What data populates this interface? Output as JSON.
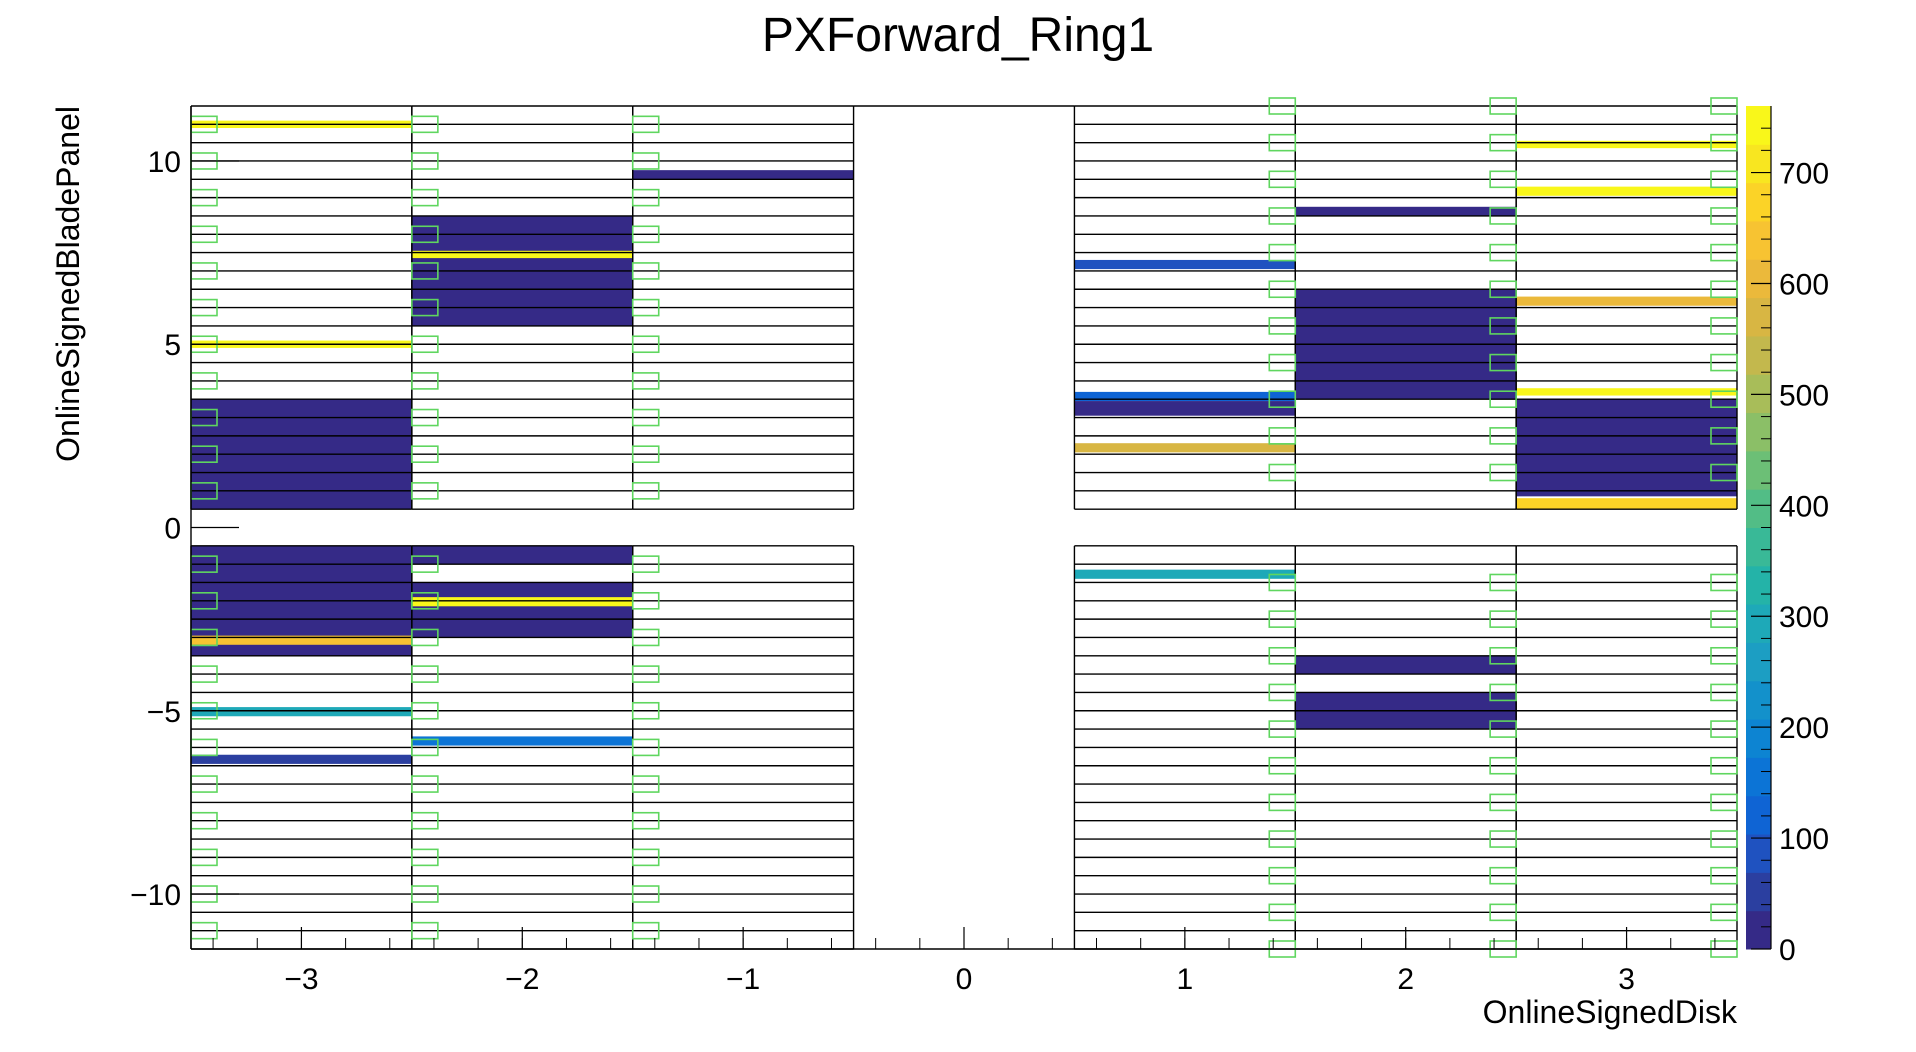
{
  "chart_data": {
    "type": "heatmap",
    "title": "PXForward_Ring1",
    "xlabel": "OnlineSignedDisk",
    "ylabel": "OnlineSignedBladePanel",
    "xlim": [
      -3.5,
      3.5
    ],
    "ylim": [
      -11.5,
      11.5
    ],
    "x_ticks": [
      -3,
      -2,
      -1,
      0,
      1,
      2,
      3
    ],
    "x_tick_labels": [
      "−3",
      "−2",
      "−1",
      "0",
      "1",
      "2",
      "3"
    ],
    "y_ticks": [
      -10,
      -5,
      0,
      5,
      10
    ],
    "y_tick_labels": [
      "−10",
      "−5",
      "0",
      "5",
      "10"
    ],
    "colorbar": {
      "min": 0,
      "max": 760,
      "ticks": [
        0,
        100,
        200,
        300,
        400,
        500,
        600,
        700
      ],
      "tick_labels": [
        "0",
        "100",
        "200",
        "300",
        "400",
        "500",
        "600",
        "700"
      ],
      "palette": [
        "#352a87",
        "#2b3fa0",
        "#1f52c0",
        "#0f64d4",
        "#0c74d6",
        "#0d84d2",
        "#1391cb",
        "#1c9ec3",
        "#1ea9b8",
        "#24b3a8",
        "#39b997",
        "#52bd86",
        "#6cbf76",
        "#8bbf67",
        "#a8bd59",
        "#c3b84d",
        "#d8b643",
        "#ebb93b",
        "#f7c332",
        "#fbd327",
        "#f8e620",
        "#f9f71a"
      ]
    },
    "panel_rows_top": [
      11,
      10.5,
      10,
      9.5,
      9,
      8.5,
      8,
      7.5,
      7,
      6.5,
      6,
      5.5,
      5,
      4.5,
      4,
      3.5,
      3,
      2.5,
      2,
      1.5,
      1,
      0.5
    ],
    "panel_rows_bottom": [
      -0.5,
      -1,
      -1.5,
      -2,
      -2.5,
      -3,
      -3.5,
      -4,
      -4.5,
      -5,
      -5.5,
      -6,
      -6.5,
      -7,
      -7.5,
      -8,
      -8.5,
      -9,
      -9.5,
      -10,
      -10.5,
      -11
    ],
    "disks": [
      -3,
      -2,
      -1,
      1,
      2,
      3
    ],
    "cells": [
      {
        "x": -3,
        "y0": 10.9,
        "y1": 11.1,
        "value": 740
      },
      {
        "x": -3,
        "y0": 4.9,
        "y1": 5.1,
        "value": 740
      },
      {
        "x": -3,
        "y0": 0.5,
        "y1": 3.5,
        "value": 5
      },
      {
        "x": -3,
        "y0": -3.5,
        "y1": -0.5,
        "value": 5
      },
      {
        "x": -3,
        "y0": -3.2,
        "y1": -2.95,
        "value": 650
      },
      {
        "x": -3,
        "y0": -5.15,
        "y1": -4.9,
        "value": 290
      },
      {
        "x": -3,
        "y0": -6.45,
        "y1": -6.2,
        "value": 50
      },
      {
        "x": -2,
        "y0": 5.5,
        "y1": 8.5,
        "value": 5
      },
      {
        "x": -2,
        "y0": 7.35,
        "y1": 7.55,
        "value": 740
      },
      {
        "x": -2,
        "y0": -1,
        "y1": -0.5,
        "value": 5
      },
      {
        "x": -2,
        "y0": -3,
        "y1": -1.5,
        "value": 5
      },
      {
        "x": -2,
        "y0": -2.15,
        "y1": -1.9,
        "value": 740
      },
      {
        "x": -2,
        "y0": -5.95,
        "y1": -5.7,
        "value": 150
      },
      {
        "x": -1,
        "y0": 9.5,
        "y1": 9.75,
        "value": 20
      },
      {
        "x": 1,
        "y0": 7.05,
        "y1": 7.3,
        "value": 80
      },
      {
        "x": 1,
        "y0": 3.45,
        "y1": 3.7,
        "value": 130
      },
      {
        "x": 1,
        "y0": 3.05,
        "y1": 3.45,
        "value": 5
      },
      {
        "x": 1,
        "y0": 2.05,
        "y1": 2.3,
        "value": 560
      },
      {
        "x": 1,
        "y0": -1.4,
        "y1": -1.15,
        "value": 280
      },
      {
        "x": 2,
        "y0": 8.5,
        "y1": 8.75,
        "value": 5
      },
      {
        "x": 2,
        "y0": 3.5,
        "y1": 6.5,
        "value": 5
      },
      {
        "x": 2,
        "y0": -4,
        "y1": -3.5,
        "value": 5
      },
      {
        "x": 2,
        "y0": -5.5,
        "y1": -4.5,
        "value": 5
      },
      {
        "x": 3,
        "y0": 10.35,
        "y1": 10.55,
        "value": 740
      },
      {
        "x": 3,
        "y0": 9.05,
        "y1": 9.3,
        "value": 740
      },
      {
        "x": 3,
        "y0": 6.05,
        "y1": 6.3,
        "value": 600
      },
      {
        "x": 3,
        "y0": 3.6,
        "y1": 3.8,
        "value": 740
      },
      {
        "x": 3,
        "y0": 0.85,
        "y1": 3.5,
        "value": 5
      },
      {
        "x": 3,
        "y0": 0.5,
        "y1": 0.8,
        "value": 660
      }
    ],
    "marker_color": "#5fd65f",
    "grid": false
  }
}
